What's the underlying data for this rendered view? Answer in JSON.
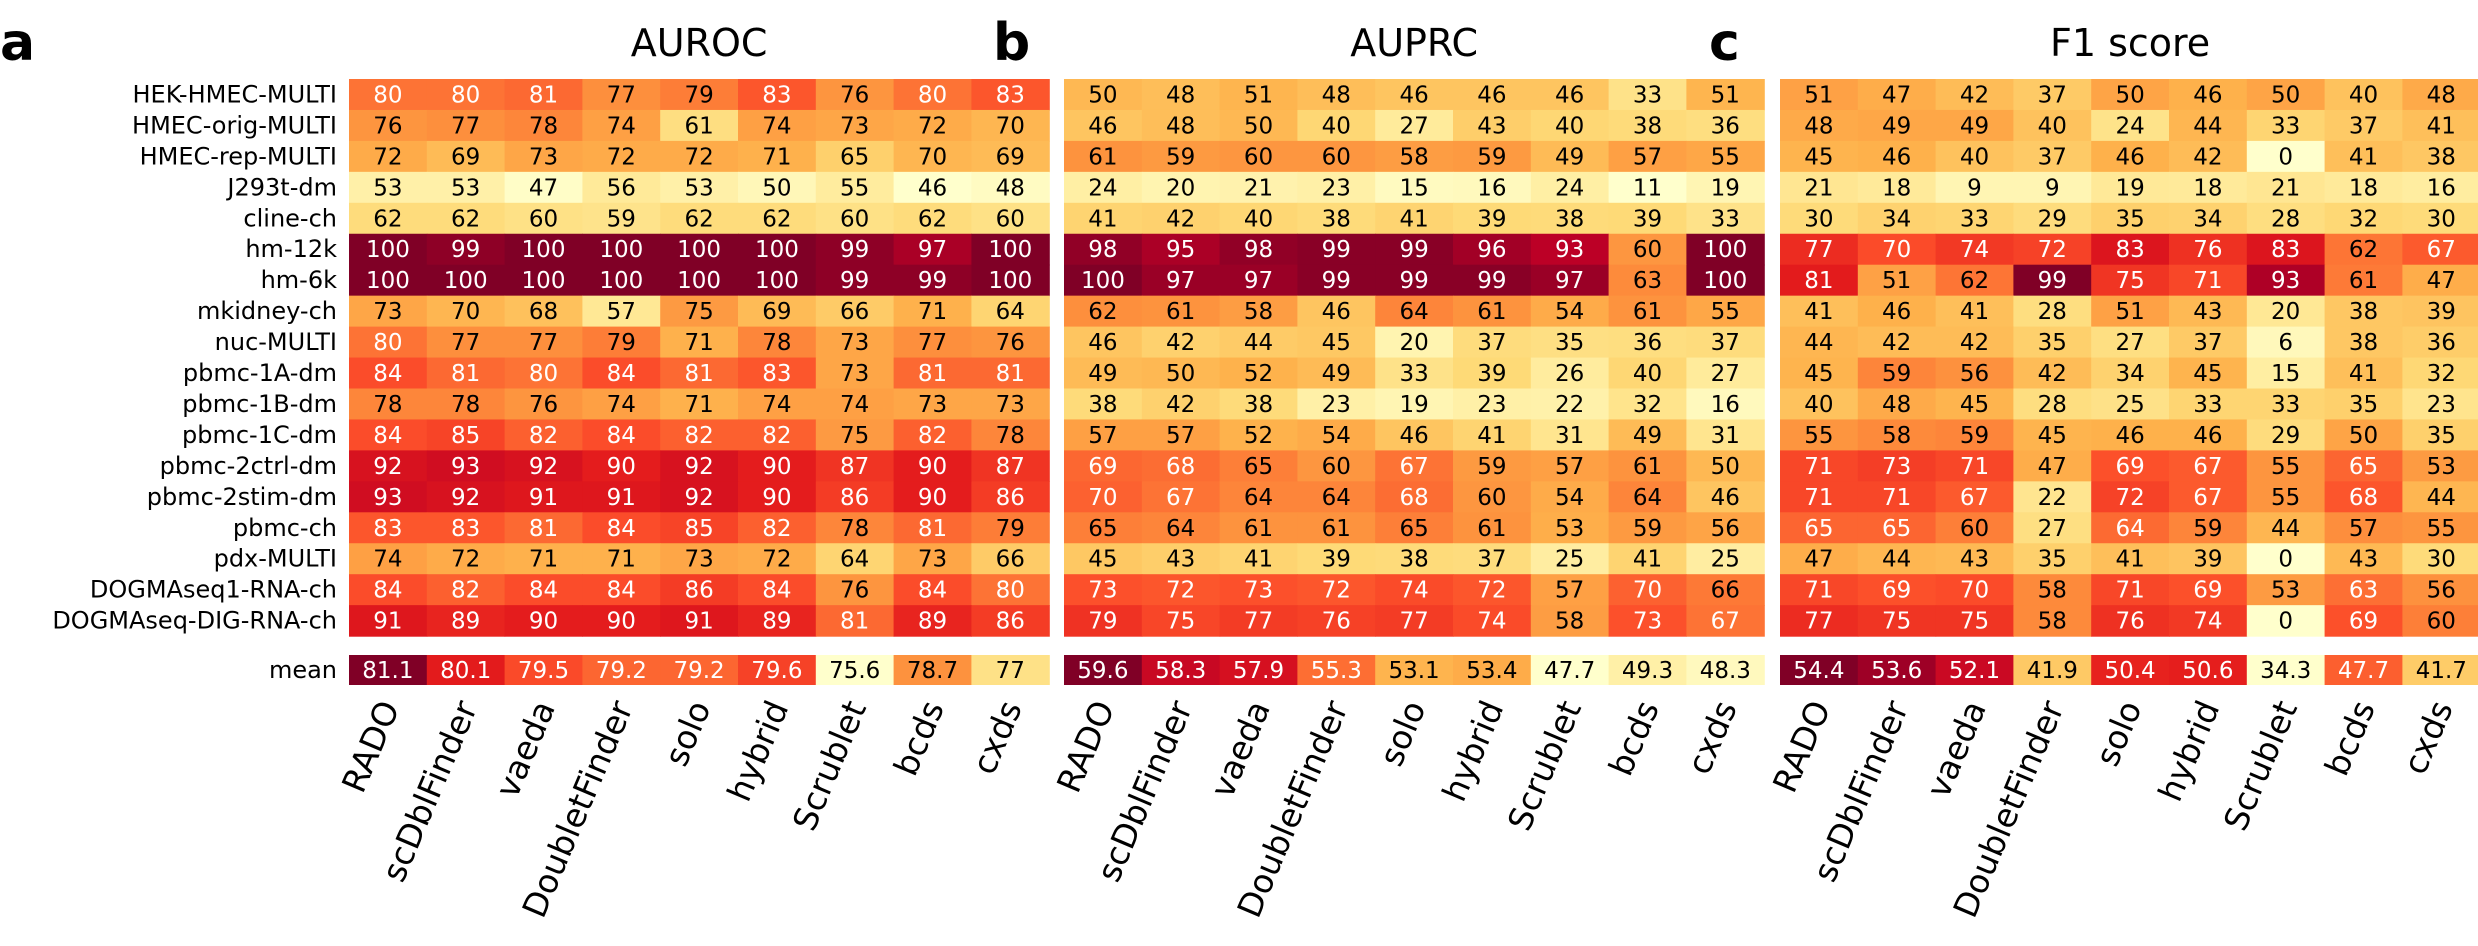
{
  "chart_data": {
    "type": "heatmap",
    "rows": [
      "HEK-HMEC-MULTI",
      "HMEC-orig-MULTI",
      "HMEC-rep-MULTI",
      "J293t-dm",
      "cline-ch",
      "hm-12k",
      "hm-6k",
      "mkidney-ch",
      "nuc-MULTI",
      "pbmc-1A-dm",
      "pbmc-1B-dm",
      "pbmc-1C-dm",
      "pbmc-2ctrl-dm",
      "pbmc-2stim-dm",
      "pbmc-ch",
      "pdx-MULTI",
      "DOGMAseq1-RNA-ch",
      "DOGMAseq-DIG-RNA-ch"
    ],
    "methods": [
      "RADO",
      "scDblFinder",
      "vaeda",
      "DoubletFinder",
      "solo",
      "hybrid",
      "Scrublet",
      "bcds",
      "cxds"
    ],
    "mean_label": "mean",
    "panels": [
      {
        "letter": "a",
        "title": "AUROC",
        "values": [
          [
            80,
            80,
            81,
            77,
            79,
            83,
            76,
            80,
            83
          ],
          [
            76,
            77,
            78,
            74,
            61,
            74,
            73,
            72,
            70
          ],
          [
            72,
            69,
            73,
            72,
            72,
            71,
            65,
            70,
            69
          ],
          [
            53,
            53,
            47,
            56,
            53,
            50,
            55,
            46,
            48
          ],
          [
            62,
            62,
            60,
            59,
            62,
            62,
            60,
            62,
            60
          ],
          [
            100,
            99,
            100,
            100,
            100,
            100,
            99,
            97,
            100
          ],
          [
            100,
            100,
            100,
            100,
            100,
            100,
            99,
            99,
            100
          ],
          [
            73,
            70,
            68,
            57,
            75,
            69,
            66,
            71,
            64
          ],
          [
            80,
            77,
            77,
            79,
            71,
            78,
            73,
            77,
            76
          ],
          [
            84,
            81,
            80,
            84,
            81,
            83,
            73,
            81,
            81
          ],
          [
            78,
            78,
            76,
            74,
            71,
            74,
            74,
            73,
            73
          ],
          [
            84,
            85,
            82,
            84,
            82,
            82,
            75,
            82,
            78
          ],
          [
            92,
            93,
            92,
            90,
            92,
            90,
            87,
            90,
            87
          ],
          [
            93,
            92,
            91,
            91,
            92,
            90,
            86,
            90,
            86
          ],
          [
            83,
            83,
            81,
            84,
            85,
            82,
            78,
            81,
            79
          ],
          [
            74,
            72,
            71,
            71,
            73,
            72,
            64,
            73,
            66
          ],
          [
            84,
            82,
            84,
            84,
            86,
            84,
            76,
            84,
            80
          ],
          [
            91,
            89,
            90,
            90,
            91,
            89,
            81,
            89,
            86
          ]
        ],
        "mean": [
          "81.1",
          "80.1",
          "79.5",
          "79.2",
          "79.2",
          "79.6",
          "75.6",
          "78.7",
          "77"
        ]
      },
      {
        "letter": "b",
        "title": "AUPRC",
        "values": [
          [
            50,
            48,
            51,
            48,
            46,
            46,
            46,
            33,
            51
          ],
          [
            46,
            48,
            50,
            40,
            27,
            43,
            40,
            38,
            36
          ],
          [
            61,
            59,
            60,
            60,
            58,
            59,
            49,
            57,
            55
          ],
          [
            24,
            20,
            21,
            23,
            15,
            16,
            24,
            11,
            19
          ],
          [
            41,
            42,
            40,
            38,
            41,
            39,
            38,
            39,
            33
          ],
          [
            98,
            95,
            98,
            99,
            99,
            96,
            93,
            60,
            100
          ],
          [
            100,
            97,
            97,
            99,
            99,
            99,
            97,
            63,
            100
          ],
          [
            62,
            61,
            58,
            46,
            64,
            61,
            54,
            61,
            55
          ],
          [
            46,
            42,
            44,
            45,
            20,
            37,
            35,
            36,
            37
          ],
          [
            49,
            50,
            52,
            49,
            33,
            39,
            26,
            40,
            27
          ],
          [
            38,
            42,
            38,
            23,
            19,
            23,
            22,
            32,
            16
          ],
          [
            57,
            57,
            52,
            54,
            46,
            41,
            31,
            49,
            31
          ],
          [
            69,
            68,
            65,
            60,
            67,
            59,
            57,
            61,
            50
          ],
          [
            70,
            67,
            64,
            64,
            68,
            60,
            54,
            64,
            46
          ],
          [
            65,
            64,
            61,
            61,
            65,
            61,
            53,
            59,
            56
          ],
          [
            45,
            43,
            41,
            39,
            38,
            37,
            25,
            41,
            25
          ],
          [
            73,
            72,
            73,
            72,
            74,
            72,
            57,
            70,
            66
          ],
          [
            79,
            75,
            77,
            76,
            77,
            74,
            58,
            73,
            67
          ]
        ],
        "mean": [
          "59.6",
          "58.3",
          "57.9",
          "55.3",
          "53.1",
          "53.4",
          "47.7",
          "49.3",
          "48.3"
        ]
      },
      {
        "letter": "c",
        "title": "F1 score",
        "values": [
          [
            51,
            47,
            42,
            37,
            50,
            46,
            50,
            40,
            48
          ],
          [
            48,
            49,
            49,
            40,
            24,
            44,
            33,
            37,
            41
          ],
          [
            45,
            46,
            40,
            37,
            46,
            42,
            0,
            41,
            38
          ],
          [
            21,
            18,
            9,
            9,
            19,
            18,
            21,
            18,
            16
          ],
          [
            30,
            34,
            33,
            29,
            35,
            34,
            28,
            32,
            30
          ],
          [
            77,
            70,
            74,
            72,
            83,
            76,
            83,
            62,
            67
          ],
          [
            81,
            51,
            62,
            99,
            75,
            71,
            93,
            61,
            47
          ],
          [
            41,
            46,
            41,
            28,
            51,
            43,
            20,
            38,
            39
          ],
          [
            44,
            42,
            42,
            35,
            27,
            37,
            6,
            38,
            36
          ],
          [
            45,
            59,
            56,
            42,
            34,
            45,
            15,
            41,
            32
          ],
          [
            40,
            48,
            45,
            28,
            25,
            33,
            33,
            35,
            23
          ],
          [
            55,
            58,
            59,
            45,
            46,
            46,
            29,
            50,
            35
          ],
          [
            71,
            73,
            71,
            47,
            69,
            67,
            55,
            65,
            53
          ],
          [
            71,
            71,
            67,
            22,
            72,
            67,
            55,
            68,
            44
          ],
          [
            65,
            65,
            60,
            27,
            64,
            59,
            44,
            57,
            55
          ],
          [
            47,
            44,
            43,
            35,
            41,
            39,
            0,
            43,
            30
          ],
          [
            71,
            69,
            70,
            58,
            71,
            69,
            53,
            63,
            56
          ],
          [
            77,
            75,
            75,
            58,
            76,
            74,
            0,
            69,
            60
          ]
        ],
        "mean": [
          "54.4",
          "53.6",
          "52.1",
          "41.9",
          "50.4",
          "50.6",
          "34.3",
          "47.7",
          "41.7"
        ]
      }
    ],
    "colormap": "YlOrRd",
    "grid": false,
    "legend": "none"
  }
}
